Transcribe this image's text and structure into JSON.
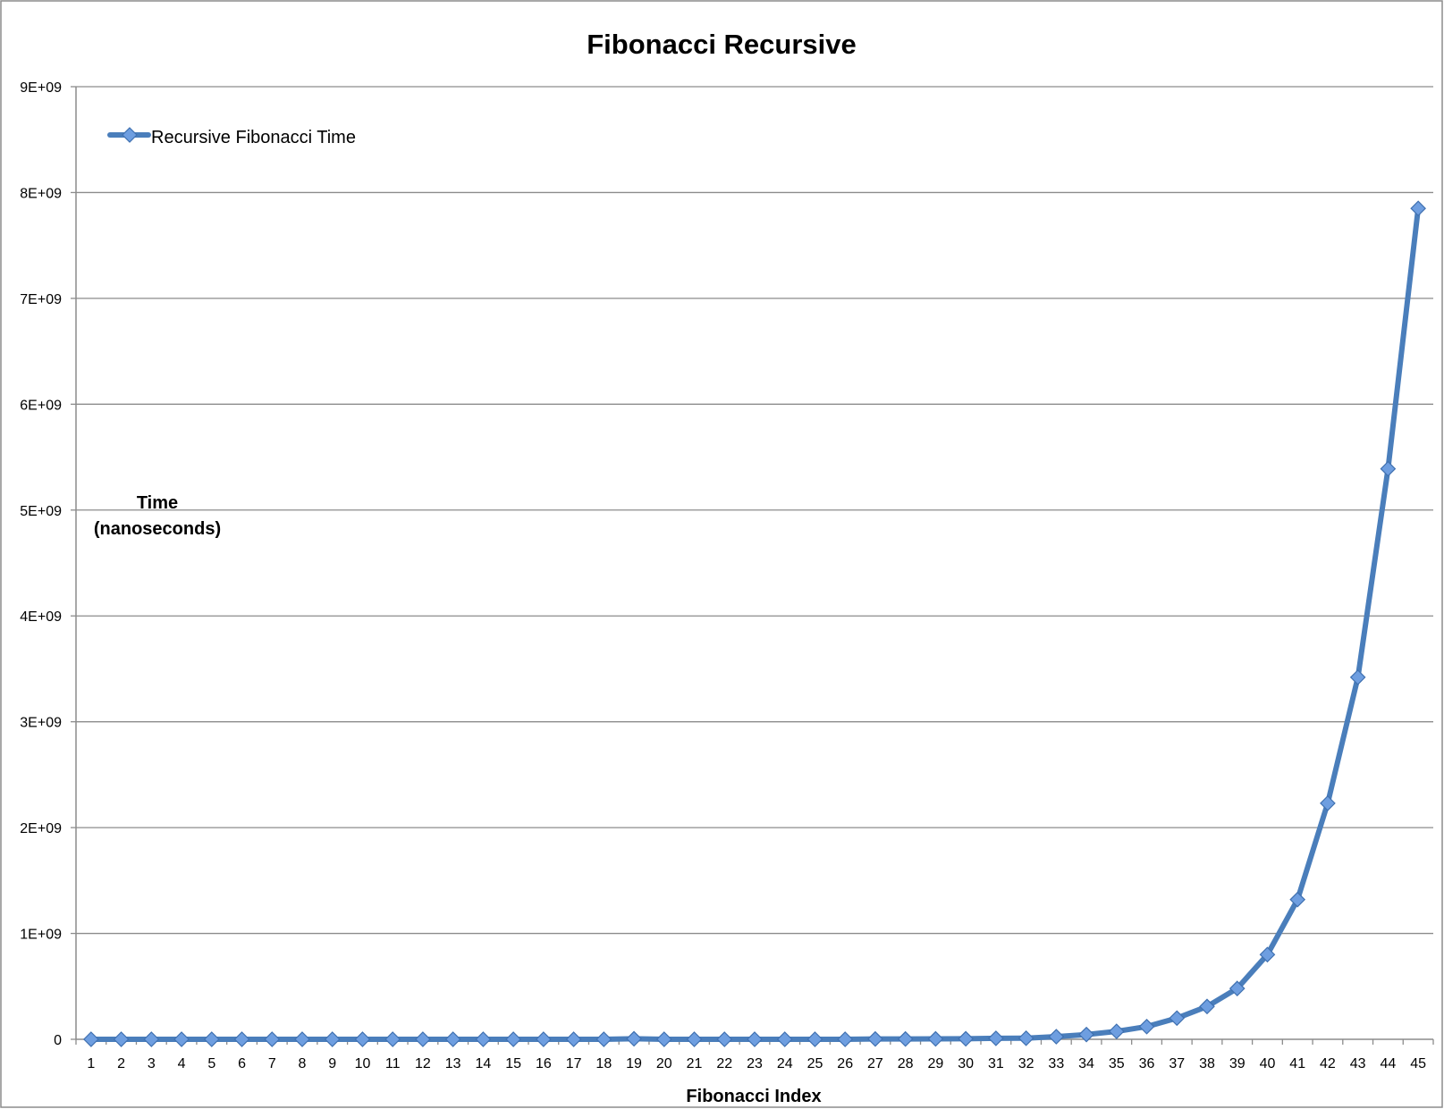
{
  "chart_data": {
    "type": "line",
    "title": "Fibonacci Recursive",
    "xlabel": "Fibonacci Index",
    "ylabel_line1": "Time",
    "ylabel_line2": "(nanoseconds)",
    "ylim": [
      0,
      9000000000
    ],
    "yticks": [
      0,
      1000000000,
      2000000000,
      3000000000,
      4000000000,
      5000000000,
      6000000000,
      7000000000,
      8000000000,
      9000000000
    ],
    "ytick_labels": [
      "0",
      "1E+09",
      "2E+09",
      "3E+09",
      "4E+09",
      "5E+09",
      "6E+09",
      "7E+09",
      "8E+09",
      "9E+09"
    ],
    "grid": true,
    "legend_position": "top-left",
    "colors": {
      "series": "#4a7ebb",
      "marker_fill": "#6e9ee0",
      "marker_edge": "#3f70b0",
      "grid": "#8c8c8c",
      "axis": "#8c8c8c",
      "border": "#8c8c8c"
    },
    "categories": [
      "1",
      "2",
      "3",
      "4",
      "5",
      "6",
      "7",
      "8",
      "9",
      "10",
      "11",
      "12",
      "13",
      "14",
      "15",
      "16",
      "17",
      "18",
      "19",
      "20",
      "21",
      "22",
      "23",
      "24",
      "25",
      "26",
      "27",
      "28",
      "29",
      "30",
      "31",
      "32",
      "33",
      "34",
      "35",
      "36",
      "37",
      "38",
      "39",
      "40",
      "41",
      "42",
      "43",
      "44",
      "45"
    ],
    "series": [
      {
        "name": "Recursive Fibonacci Time",
        "values": [
          0,
          0,
          0,
          0,
          0,
          0,
          0,
          0,
          0,
          0,
          0,
          0,
          0,
          0,
          0,
          0,
          0,
          0,
          5000000,
          0,
          0,
          0,
          0,
          0,
          0,
          0,
          3000000,
          3000000,
          4000000,
          5000000,
          9000000,
          10000000,
          25000000,
          45000000,
          75000000,
          120000000,
          200000000,
          310000000,
          480000000,
          800000000,
          1320000000,
          2230000000,
          3420000000,
          5390000000,
          7850000000
        ]
      }
    ]
  }
}
